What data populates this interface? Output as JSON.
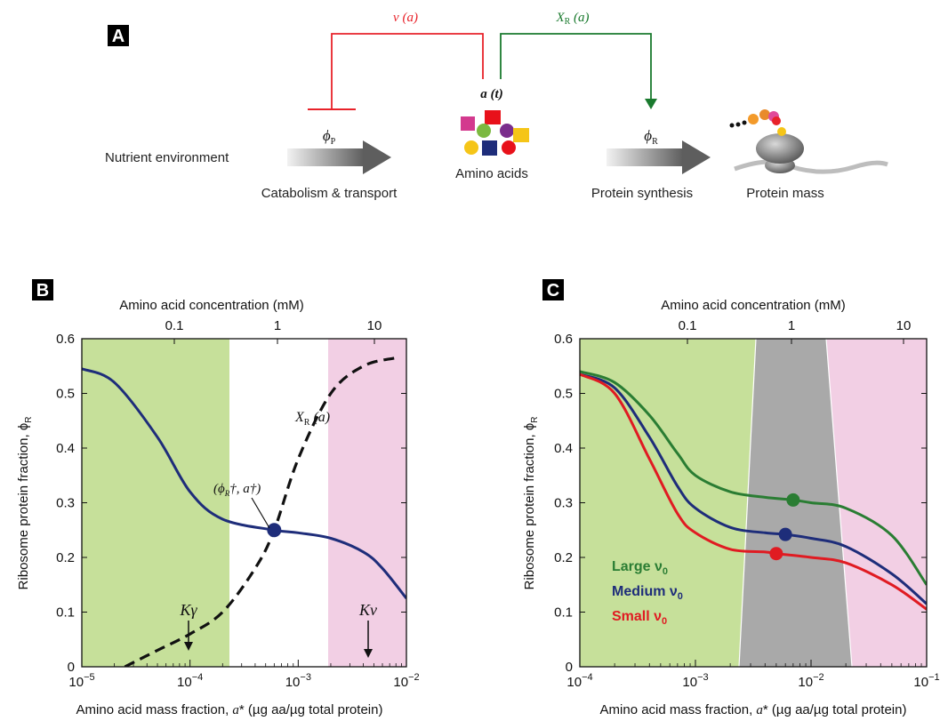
{
  "panel_a": {
    "letter": "A",
    "nutrient_label": "Nutrient environment",
    "catabolism_label": "Catabolism & transport",
    "amino_acids_label": "Amino acids",
    "protein_synthesis_label": "Protein synthesis",
    "protein_mass_label": "Protein mass",
    "phi_p": "ϕ",
    "phi_p_sub": "P",
    "phi_r": "ϕ",
    "phi_r_sub": "R",
    "nu_label": "ν (a)",
    "xr_label": "X",
    "xr_sub": "R",
    "xr_arg": " (a)",
    "a_t_label": "a (t)",
    "colors": {
      "inhibit": "#e8222a",
      "activate": "#1a7a2e"
    }
  },
  "panel_b": {
    "letter": "B",
    "top_axis_title": "Amino acid concentration (mM)",
    "top_ticks": [
      "0.1",
      "1",
      "10"
    ],
    "y_title": "Ribosome protein fraction, ϕ",
    "y_title_sub": "R",
    "y_ticks": [
      "0",
      "0.1",
      "0.2",
      "0.3",
      "0.4",
      "0.5",
      "0.6"
    ],
    "x_ticks_base": [
      "10",
      "10",
      "10",
      "10"
    ],
    "x_ticks_exp": [
      "−5",
      "−4",
      "−3",
      "−2"
    ],
    "x_title": "Amino acid mass fraction, a* (µg aa/µg total protein)",
    "xr_curve_label": "X",
    "xr_curve_sub": "R",
    "xr_curve_arg": " (a)",
    "point_label": "(ϕ",
    "point_label_sub": "R",
    "point_label_rest": "†, a†)",
    "k_gamma": "Kγ",
    "k_nu": "Kν",
    "colors": {
      "green_band": "#c6e09a",
      "pink_band": "#f2cfe4",
      "curve": "#1e2d7a"
    }
  },
  "panel_c": {
    "letter": "C",
    "top_axis_title": "Amino acid concentration (mM)",
    "top_ticks": [
      "0.1",
      "1",
      "10"
    ],
    "y_title": "Ribosome protein fraction, ϕ",
    "y_title_sub": "R",
    "y_ticks": [
      "0",
      "0.1",
      "0.2",
      "0.3",
      "0.4",
      "0.5",
      "0.6"
    ],
    "x_ticks_base": [
      "10",
      "10",
      "10",
      "10"
    ],
    "x_ticks_exp": [
      "−4",
      "−3",
      "−2",
      "−1"
    ],
    "x_title": "Amino acid mass fraction, a* (µg aa/µg total protein)",
    "legend": [
      {
        "text": "Large ν",
        "sub": "0",
        "color": "#2a7d33"
      },
      {
        "text": "Medium ν",
        "sub": "0",
        "color": "#1e2d7a"
      },
      {
        "text": "Small ν",
        "sub": "0",
        "color": "#e01b22"
      }
    ],
    "colors": {
      "green_band": "#c6e09a",
      "grey_band": "#a9a9a9",
      "pink_band": "#f2cfe4"
    }
  },
  "chart_data": [
    {
      "type": "line",
      "panel": "B",
      "xscale": "log",
      "xlim": [
        1e-05,
        0.01
      ],
      "ylim": [
        0,
        0.6
      ],
      "series": [
        {
          "x": [
            1e-05,
            2e-05,
            5e-05,
            0.0001,
            0.0002,
            0.0006,
            0.001,
            0.002,
            0.004,
            0.006,
            0.01
          ],
          "values": [
            0.545,
            0.52,
            0.42,
            0.32,
            0.27,
            0.25,
            0.245,
            0.235,
            0.21,
            0.18,
            0.125
          ]
        },
        {
          "x": [
            2.5e-05,
            5e-05,
            0.0001,
            0.0002,
            0.0004,
            0.0006,
            0.001,
            0.002,
            0.004,
            0.008
          ],
          "values": [
            0.0,
            0.03,
            0.06,
            0.1,
            0.18,
            0.25,
            0.38,
            0.5,
            0.55,
            0.565
          ]
        }
      ]
    },
    {
      "type": "line",
      "panel": "C",
      "xscale": "log",
      "xlim": [
        0.0001,
        0.1
      ],
      "ylim": [
        0,
        0.6
      ],
      "series": [
        {
          "name": "Large ν0",
          "x": [
            0.0001,
            0.0002,
            0.0004,
            0.0007,
            0.001,
            0.002,
            0.004,
            0.007,
            0.01,
            0.02,
            0.05,
            0.1
          ],
          "values": [
            0.54,
            0.52,
            0.46,
            0.39,
            0.35,
            0.32,
            0.31,
            0.305,
            0.3,
            0.29,
            0.24,
            0.15
          ]
        },
        {
          "name": "Medium ν0",
          "x": [
            0.0001,
            0.0002,
            0.0004,
            0.0007,
            0.001,
            0.002,
            0.004,
            0.006,
            0.01,
            0.02,
            0.05,
            0.1
          ],
          "values": [
            0.535,
            0.51,
            0.42,
            0.33,
            0.29,
            0.255,
            0.245,
            0.242,
            0.235,
            0.22,
            0.17,
            0.115
          ]
        },
        {
          "name": "Small ν0",
          "x": [
            0.0001,
            0.0002,
            0.0004,
            0.0007,
            0.001,
            0.002,
            0.004,
            0.005,
            0.01,
            0.02,
            0.05,
            0.1
          ],
          "values": [
            0.535,
            0.5,
            0.38,
            0.28,
            0.245,
            0.215,
            0.21,
            0.207,
            0.2,
            0.19,
            0.15,
            0.105
          ]
        }
      ]
    }
  ]
}
